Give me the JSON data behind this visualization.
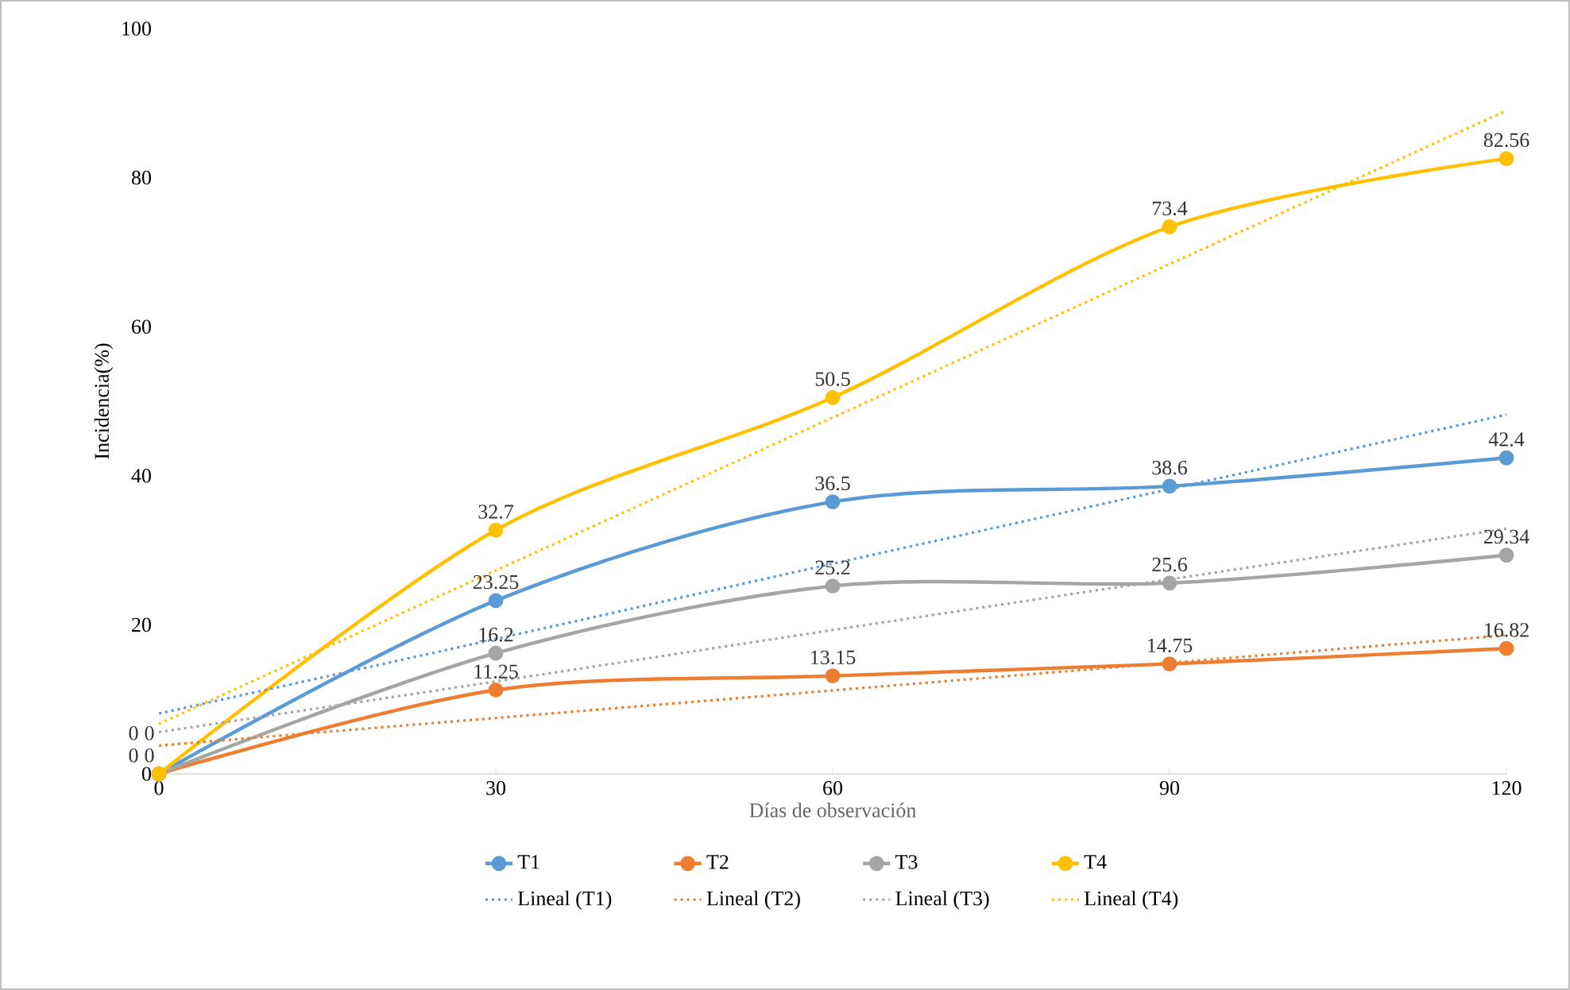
{
  "chart_data": {
    "type": "line",
    "xlabel": "Días de observación",
    "ylabel": "Incidencia(%)",
    "x": [
      0,
      30,
      60,
      90,
      120
    ],
    "xlim": [
      0,
      120
    ],
    "xticks": [
      0,
      30,
      60,
      90,
      120
    ],
    "ylim": [
      0,
      100
    ],
    "yticks": [
      0,
      20,
      40,
      60,
      80,
      100
    ],
    "legend": "bottom",
    "series": [
      {
        "name": "T1",
        "color": "#5b9bd5",
        "marker": "circle",
        "line_style": "solid",
        "values": [
          0,
          23.25,
          36.5,
          38.6,
          42.4
        ],
        "value_labels": [
          "0",
          "23.25",
          "36.5",
          "38.6",
          "42.4"
        ]
      },
      {
        "name": "T2",
        "color": "#ed7d31",
        "marker": "circle",
        "line_style": "solid",
        "values": [
          0,
          11.25,
          13.15,
          14.75,
          16.82
        ],
        "value_labels": [
          "0",
          "11.25",
          "13.15",
          "14.75",
          "16.82"
        ]
      },
      {
        "name": "T3",
        "color": "#a5a5a5",
        "marker": "circle",
        "line_style": "solid",
        "values": [
          0,
          16.2,
          25.2,
          25.6,
          29.34
        ],
        "value_labels": [
          "0",
          "16.2",
          "25.2",
          "25.6",
          "29.34"
        ]
      },
      {
        "name": "T4",
        "color": "#ffc000",
        "marker": "circle",
        "line_style": "solid",
        "values": [
          0,
          32.7,
          50.5,
          73.4,
          82.56
        ],
        "value_labels": [
          "0",
          "32.7",
          "50.5",
          "73.4",
          "82.56"
        ]
      },
      {
        "name": "Lineal (T1)",
        "color": "#5b9bd5",
        "marker": "none",
        "line_style": "dotted",
        "values": [
          8.1,
          18.1,
          28.2,
          38.2,
          48.2
        ]
      },
      {
        "name": "Lineal (T2)",
        "color": "#ed7d31",
        "marker": "none",
        "line_style": "dotted",
        "values": [
          3.8,
          7.5,
          11.2,
          14.9,
          18.6
        ]
      },
      {
        "name": "Lineal (T3)",
        "color": "#a5a5a5",
        "marker": "none",
        "line_style": "dotted",
        "values": [
          5.6,
          12.4,
          19.3,
          26.1,
          32.9
        ]
      },
      {
        "name": "Lineal (T4)",
        "color": "#ffc000",
        "marker": "none",
        "line_style": "dotted",
        "values": [
          6.7,
          27.3,
          47.8,
          68.4,
          89.0
        ]
      }
    ]
  }
}
